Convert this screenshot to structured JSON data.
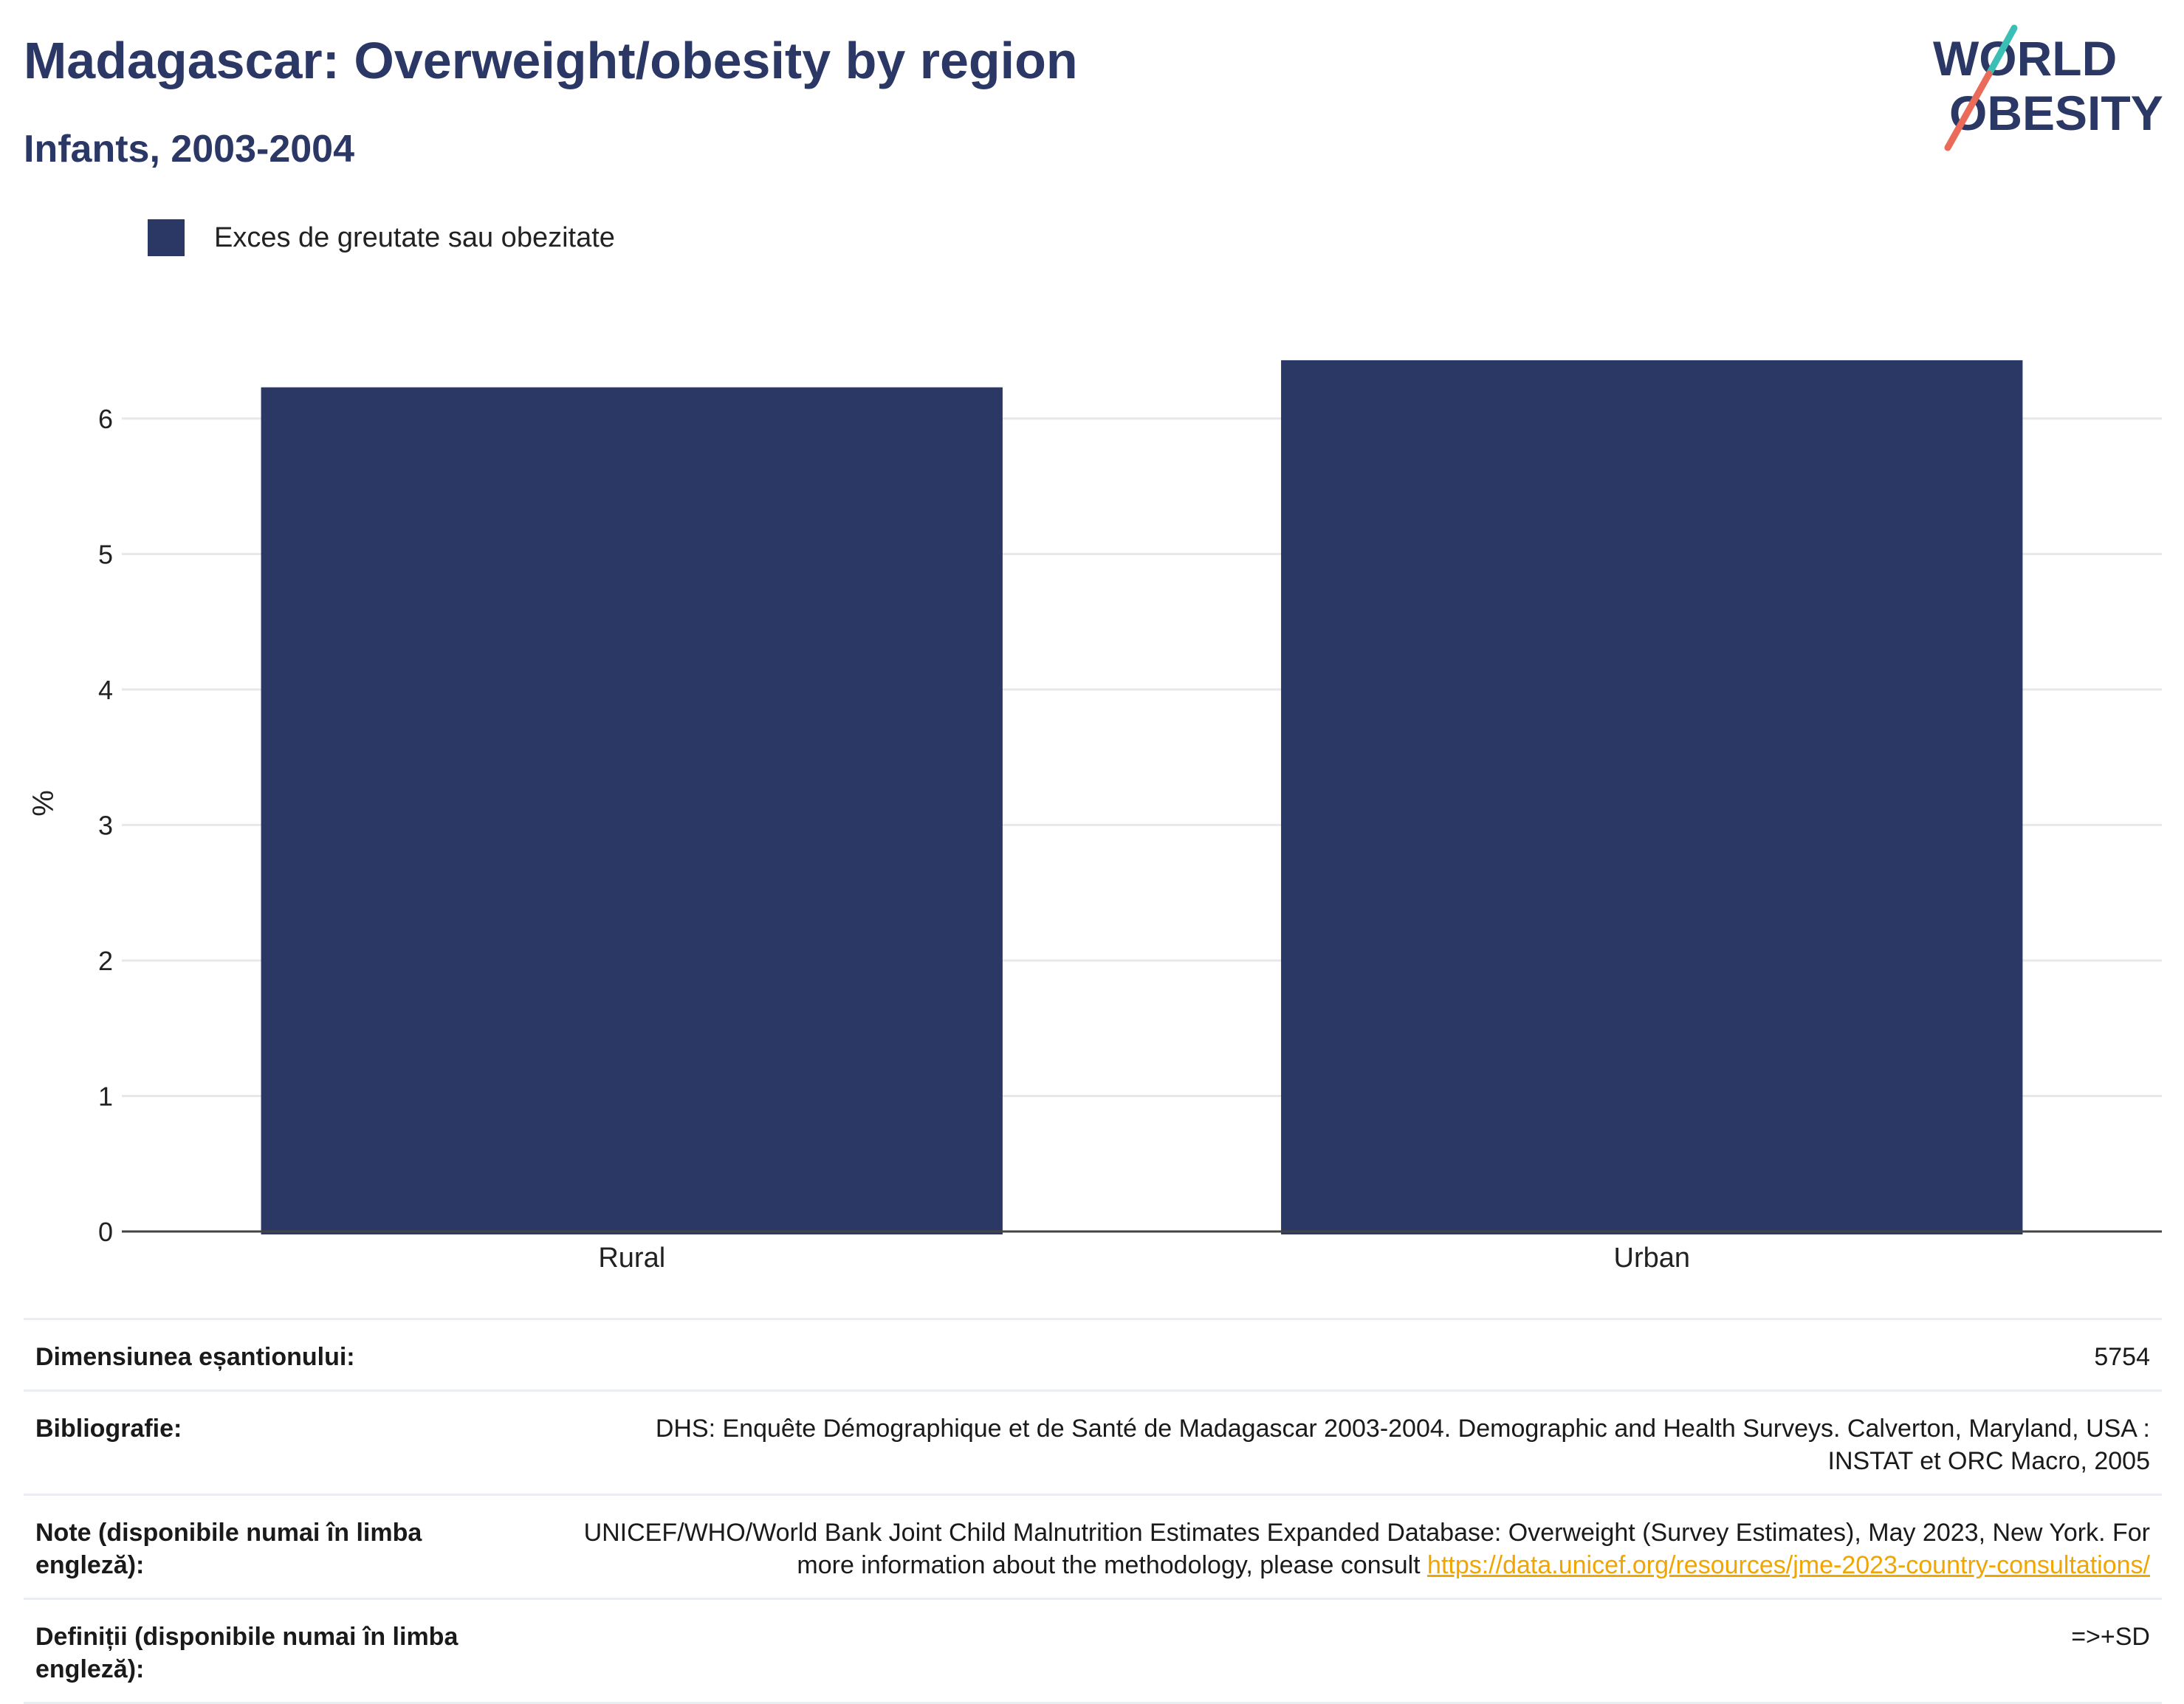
{
  "header": {
    "title": "Madagascar: Overweight/obesity by region",
    "subtitle": "Infants, 2003-2004"
  },
  "logo": {
    "line1": "WORLD",
    "line2": "OBESITY",
    "accent_teal": "#3bbfb5",
    "accent_coral": "#ea6b5a"
  },
  "legend": {
    "label": "Exces de greutate sau obezitate",
    "color": "#2b3765"
  },
  "chart_data": {
    "type": "bar",
    "categories": [
      "Rural",
      "Urban"
    ],
    "series": [
      {
        "name": "Exces de greutate sau obezitate",
        "values": [
          6.23,
          6.43
        ],
        "color": "#2b3765"
      }
    ],
    "ylabel": "%",
    "ylim": [
      0,
      6.8
    ],
    "yticks": [
      0,
      1,
      2,
      3,
      4,
      5,
      6
    ],
    "grid": true
  },
  "table": {
    "rows": [
      {
        "key": "Dimensiunea eșantionului:",
        "value": "5754"
      },
      {
        "key": "Bibliografie:",
        "value": "DHS: Enquête Démographique et de Santé de Madagascar 2003-2004. Demographic and Health Surveys. Calverton, Maryland, USA : INSTAT et ORC Macro, 2005"
      },
      {
        "key": "Note (disponibile numai în limba engleză):",
        "value": "UNICEF/WHO/World Bank Joint Child Malnutrition Estimates Expanded Database: Overweight (Survey Estimates), May 2023, New York. For more information about the methodology, please consult ",
        "link": "https://data.unicef.org/resources/jme-2023-country-consultations/"
      },
      {
        "key": "Definiții (disponibile numai în limba engleză):",
        "value": "=>+SD"
      }
    ]
  }
}
